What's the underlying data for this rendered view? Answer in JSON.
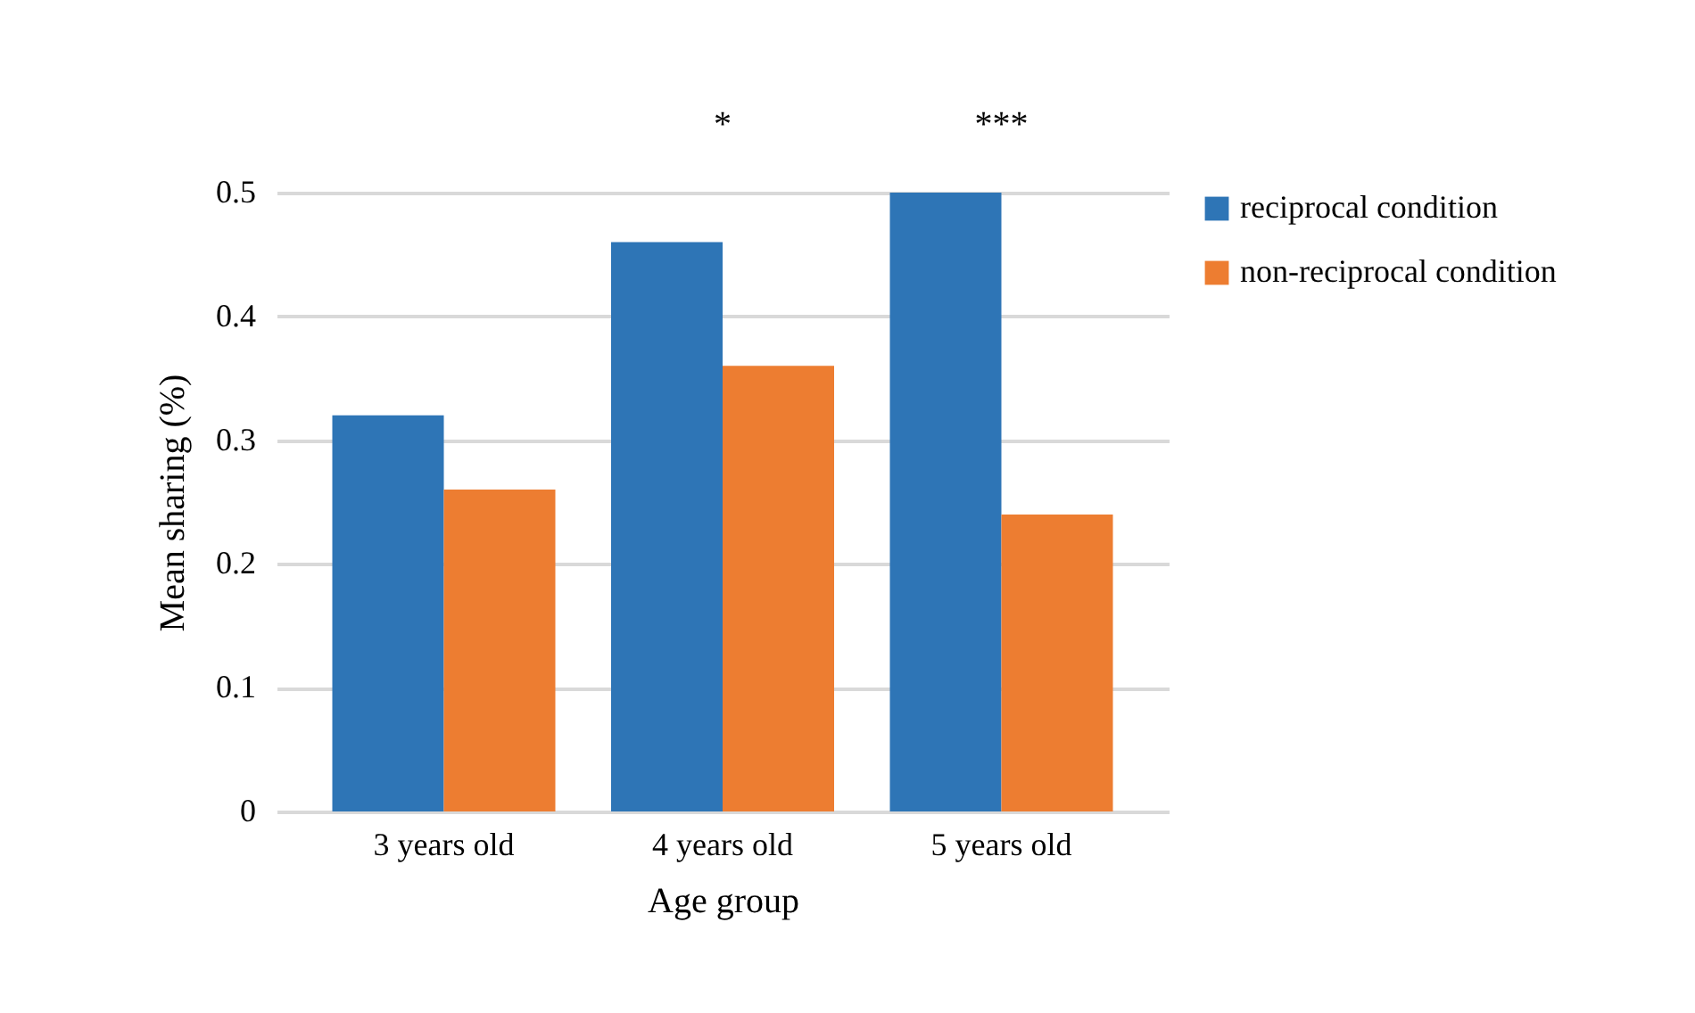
{
  "chart_data": {
    "type": "bar",
    "xlabel": "Age group",
    "ylabel": "Mean sharing (%)",
    "categories": [
      "3 years old",
      "4 years old",
      "5 years old"
    ],
    "series": [
      {
        "name": "reciprocal condition",
        "color": "#2e75b6",
        "values": [
          0.32,
          0.46,
          0.5
        ]
      },
      {
        "name": "non-reciprocal condition",
        "color": "#ed7d31",
        "values": [
          0.26,
          0.36,
          0.24
        ]
      }
    ],
    "ylim": [
      0,
      0.5
    ],
    "yticks": [
      0,
      0.1,
      0.2,
      0.3,
      0.4,
      0.5
    ],
    "grid": "y",
    "legend": "right",
    "annotations": [
      "*",
      "***"
    ]
  }
}
